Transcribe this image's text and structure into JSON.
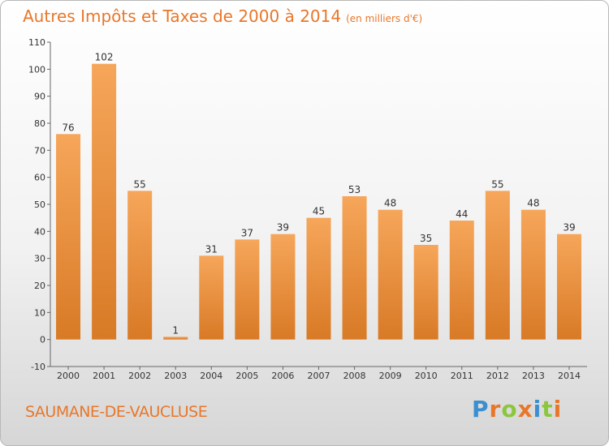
{
  "header": {
    "title": "Autres Impôts et Taxes de 2000 à 2014",
    "unit": "(en milliers d'€)"
  },
  "footer": {
    "commune": "SAUMANE-DE-VAUCLUSE",
    "logo": "Proxiti"
  },
  "colors": {
    "accent": "#e8772a",
    "bar_light": "#f6a65a",
    "bar_dark": "#d87a26"
  },
  "chart_data": {
    "type": "bar",
    "title": "Autres Impôts et Taxes de 2000 à 2014",
    "subtitle": "(en milliers d'€)",
    "categories": [
      "2000",
      "2001",
      "2002",
      "2003",
      "2004",
      "2005",
      "2006",
      "2007",
      "2008",
      "2009",
      "2010",
      "2011",
      "2012",
      "2013",
      "2014"
    ],
    "values": [
      76,
      102,
      55,
      1,
      31,
      37,
      39,
      45,
      53,
      48,
      35,
      44,
      55,
      48,
      39
    ],
    "ylim": [
      -10,
      110
    ],
    "yticks": [
      -10,
      0,
      10,
      20,
      30,
      40,
      50,
      60,
      70,
      80,
      90,
      100,
      110
    ],
    "grid": false,
    "legend": "none"
  }
}
